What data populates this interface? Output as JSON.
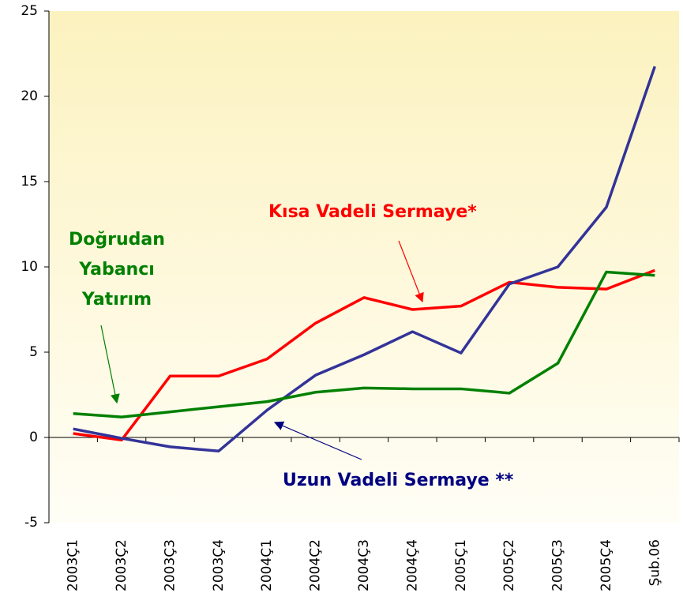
{
  "chart_data": {
    "type": "line",
    "categories": [
      "2003Ç1",
      "2003Ç2",
      "2003Ç3",
      "2003Ç4",
      "2004Ç1",
      "2004Ç2",
      "2004Ç3",
      "2004Ç4",
      "2005Ç1",
      "2005Ç2",
      "2005Ç3",
      "2005Ç4",
      "Şub.06"
    ],
    "series": [
      {
        "name": "Kısa Vadeli Sermaye*",
        "color": "#ff0000",
        "values": [
          0.23,
          -0.15,
          3.6,
          3.6,
          4.6,
          6.7,
          8.2,
          7.5,
          7.7,
          9.1,
          8.8,
          8.7,
          9.8
        ]
      },
      {
        "name": "Uzun Vadeli Sermaye **",
        "color": "#333399",
        "values": [
          0.5,
          -0.05,
          -0.55,
          -0.8,
          1.6,
          3.65,
          4.85,
          6.2,
          4.95,
          9.0,
          10.0,
          13.5,
          21.75
        ]
      },
      {
        "name": "Doğrudan Yabancı Yatırım",
        "color": "#008000",
        "values": [
          1.4,
          1.2,
          1.5,
          1.8,
          2.1,
          2.65,
          2.9,
          2.85,
          2.85,
          2.6,
          4.35,
          9.7,
          9.5
        ]
      }
    ],
    "ylim": [
      -5,
      25
    ],
    "yticks": [
      -5,
      0,
      5,
      10,
      15,
      20,
      25
    ]
  }
}
